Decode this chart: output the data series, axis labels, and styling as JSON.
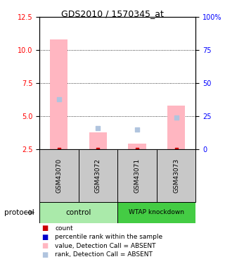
{
  "title": "GDS2010 / 1570345_at",
  "samples": [
    "GSM43070",
    "GSM43072",
    "GSM43071",
    "GSM43073"
  ],
  "groups": [
    "control",
    "control",
    "WTAP knockdown",
    "WTAP knockdown"
  ],
  "bar_values_absent": [
    10.8,
    3.8,
    2.9,
    5.8
  ],
  "rank_values_absent": [
    6.3,
    4.1,
    4.0,
    4.9
  ],
  "bar_color_absent": "#FFB6C1",
  "rank_color_absent": "#B0C4DE",
  "dot_red": "#CC0000",
  "dot_blue": "#0000CC",
  "ylim_left": [
    2.5,
    12.5
  ],
  "ylim_right": [
    0,
    100
  ],
  "yticks_left": [
    2.5,
    5.0,
    7.5,
    10.0,
    12.5
  ],
  "yticks_right": [
    0,
    25,
    50,
    75,
    100
  ],
  "ytick_labels_right": [
    "0",
    "25",
    "50",
    "75",
    "100%"
  ],
  "dotted_lines": [
    5.0,
    7.5,
    10.0
  ],
  "control_color": "#AAEAAA",
  "wtap_color": "#44CC44",
  "legend_items": [
    {
      "label": "count",
      "color": "#CC0000"
    },
    {
      "label": "percentile rank within the sample",
      "color": "#0000CC"
    },
    {
      "label": "value, Detection Call = ABSENT",
      "color": "#FFB6C1"
    },
    {
      "label": "rank, Detection Call = ABSENT",
      "color": "#B0C4DE"
    }
  ],
  "bar_bottom": 2.5,
  "rank_dot_size": 25,
  "bar_width": 0.45,
  "gray_color": "#C8C8C8"
}
